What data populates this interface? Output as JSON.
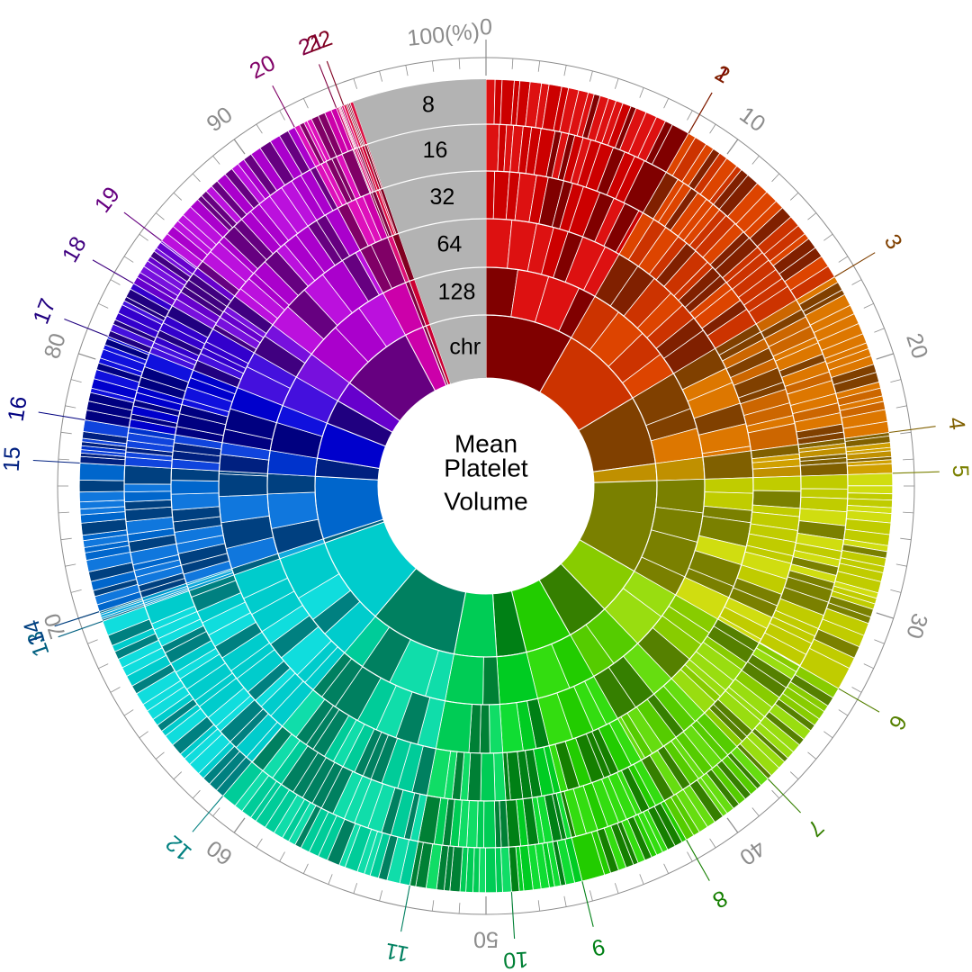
{
  "chart_data": {
    "type": "sunburst",
    "title": "Mean Platelet Volume",
    "title_lines": [
      "Mean",
      "Platelet",
      "Volume"
    ],
    "rings": [
      "chr",
      "128",
      "64",
      "32",
      "16",
      "8"
    ],
    "percent_ticks": [
      "0",
      "10",
      "20",
      "30",
      "40",
      "50",
      "60",
      "70",
      "80",
      "90",
      "100(%)"
    ],
    "chromosomes": [
      {
        "name": "1",
        "color": "#cc0000",
        "dark": "#800000",
        "bright": "#dd1111",
        "start": 0.0,
        "end": 8.3
      },
      {
        "name": "2",
        "color": "#cc3300",
        "dark": "#802000",
        "bright": "#dd4400",
        "start": 8.3,
        "end": 16.4
      },
      {
        "name": "3",
        "color": "#cc6600",
        "dark": "#804000",
        "bright": "#dd7700",
        "start": 16.4,
        "end": 22.9
      },
      {
        "name": "4",
        "color": "#c09000",
        "dark": "#806000",
        "bright": "#d0a000",
        "start": 22.9,
        "end": 24.5
      },
      {
        "name": "5",
        "color": "#c0cc00",
        "dark": "#7a8000",
        "bright": "#d0dd10",
        "start": 24.5,
        "end": 33.3
      },
      {
        "name": "6",
        "color": "#88cc00",
        "dark": "#558000",
        "bright": "#99dd10",
        "start": 33.3,
        "end": 37.8
      },
      {
        "name": "7",
        "color": "#55cc00",
        "dark": "#357f00",
        "bright": "#66dd10",
        "start": 37.8,
        "end": 41.8
      },
      {
        "name": "8",
        "color": "#22cc00",
        "dark": "#157f00",
        "bright": "#33dd10",
        "start": 41.8,
        "end": 46.2
      },
      {
        "name": "9",
        "color": "#00cc22",
        "dark": "#008015",
        "bright": "#10dd33",
        "start": 46.2,
        "end": 49.0
      },
      {
        "name": "10",
        "color": "#00cc55",
        "dark": "#008035",
        "bright": "#10dd66",
        "start": 49.0,
        "end": 53.0
      },
      {
        "name": "11",
        "color": "#00cc99",
        "dark": "#008060",
        "bright": "#10ddaa",
        "start": 53.0,
        "end": 61.2
      },
      {
        "name": "12",
        "color": "#00cccc",
        "dark": "#008080",
        "bright": "#10dddd",
        "start": 61.2,
        "end": 69.6
      },
      {
        "name": "13",
        "color": "#0099cc",
        "dark": "#006080",
        "bright": "#10aadd",
        "start": 69.6,
        "end": 70.0
      },
      {
        "name": "14",
        "color": "#0066cc",
        "dark": "#004080",
        "bright": "#1077dd",
        "start": 70.0,
        "end": 75.9
      },
      {
        "name": "15",
        "color": "#0033cc",
        "dark": "#002080",
        "bright": "#1044dd",
        "start": 75.9,
        "end": 77.6
      },
      {
        "name": "16",
        "color": "#0000cc",
        "dark": "#000080",
        "bright": "#1010dd",
        "start": 77.6,
        "end": 81.0
      },
      {
        "name": "17",
        "color": "#3300cc",
        "dark": "#200080",
        "bright": "#4410dd",
        "start": 81.0,
        "end": 83.3
      },
      {
        "name": "18",
        "color": "#6600cc",
        "dark": "#400080",
        "bright": "#7710dd",
        "start": 83.3,
        "end": 85.3
      },
      {
        "name": "19",
        "color": "#aa00cc",
        "dark": "#660080",
        "bright": "#bb10dd",
        "start": 85.3,
        "end": 92.2
      },
      {
        "name": "20",
        "color": "#cc00aa",
        "dark": "#800066",
        "bright": "#dd10bb",
        "start": 92.2,
        "end": 94.0
      },
      {
        "name": "21",
        "color": "#cc0066",
        "dark": "#800040",
        "bright": "#dd1077",
        "start": 94.0,
        "end": 94.3
      },
      {
        "name": "22",
        "color": "#cc0033",
        "dark": "#800020",
        "bright": "#dd1044",
        "start": 94.3,
        "end": 94.7
      }
    ],
    "colors": {
      "ring_label_background": "#b3b3b3",
      "percent_scale": "#8c8c8c",
      "separator": "#ffffff"
    }
  }
}
